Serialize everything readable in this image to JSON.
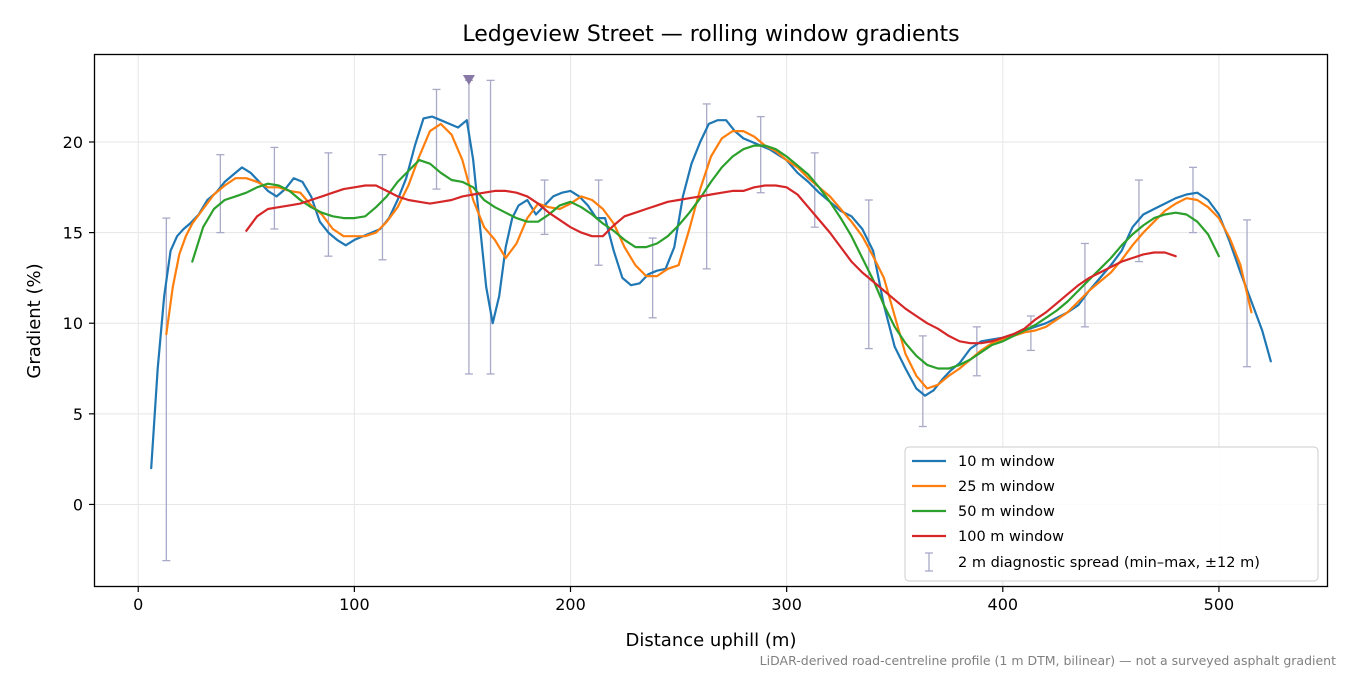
{
  "chart_data": {
    "type": "line",
    "title": "Ledgeview Street — rolling window gradients",
    "xlabel": "Distance uphill (m)",
    "ylabel": "Gradient (%)",
    "xlim": [
      -20,
      550
    ],
    "ylim": [
      -4.5,
      24.8
    ],
    "x_ticks": [
      0,
      100,
      200,
      300,
      400,
      500
    ],
    "y_ticks": [
      0,
      5,
      10,
      15,
      20
    ],
    "grid": true,
    "legend_position": "lower-right",
    "footnote": "LiDAR-derived road-centreline profile (1 m DTM, bilinear) — not a surveyed asphalt gradient",
    "series": [
      {
        "name": "10 m window",
        "color": "#1f77b4",
        "x": [
          6,
          9,
          12,
          15,
          18,
          21,
          24,
          28,
          32,
          36,
          40,
          44,
          48,
          52,
          56,
          60,
          64,
          68,
          72,
          76,
          80,
          84,
          88,
          92,
          96,
          100,
          104,
          108,
          112,
          116,
          120,
          124,
          128,
          132,
          136,
          140,
          144,
          148,
          152,
          155,
          158,
          161,
          164,
          167,
          170,
          173,
          176,
          180,
          184,
          188,
          192,
          196,
          200,
          204,
          208,
          212,
          216,
          220,
          224,
          228,
          232,
          236,
          240,
          244,
          248,
          252,
          256,
          260,
          264,
          268,
          272,
          276,
          280,
          284,
          288,
          292,
          296,
          300,
          305,
          310,
          315,
          320,
          325,
          330,
          335,
          340,
          345,
          350,
          355,
          360,
          364,
          368,
          372,
          376,
          380,
          385,
          390,
          395,
          400,
          405,
          410,
          415,
          420,
          425,
          430,
          435,
          440,
          445,
          450,
          455,
          460,
          465,
          470,
          475,
          480,
          485,
          490,
          495,
          500,
          505,
          510,
          515,
          520,
          524
        ],
        "y": [
          2.0,
          7.5,
          11.5,
          14.0,
          14.8,
          15.2,
          15.5,
          16.0,
          16.8,
          17.2,
          17.8,
          18.2,
          18.6,
          18.3,
          17.8,
          17.3,
          17.0,
          17.4,
          18.0,
          17.8,
          17.0,
          15.6,
          15.0,
          14.6,
          14.3,
          14.6,
          14.8,
          15.0,
          15.2,
          15.8,
          16.8,
          18.0,
          19.8,
          21.3,
          21.4,
          21.2,
          21.0,
          20.8,
          21.2,
          19.0,
          15.5,
          12.0,
          10.0,
          11.5,
          14.2,
          15.8,
          16.5,
          16.8,
          16.0,
          16.5,
          17.0,
          17.2,
          17.3,
          17.0,
          16.5,
          15.8,
          15.8,
          14.0,
          12.5,
          12.1,
          12.2,
          12.7,
          12.9,
          13.0,
          14.2,
          17.0,
          18.8,
          20.0,
          21.0,
          21.2,
          21.2,
          20.6,
          20.2,
          20.0,
          19.8,
          19.6,
          19.3,
          19.0,
          18.3,
          17.8,
          17.2,
          16.7,
          16.2,
          15.9,
          15.2,
          14.0,
          11.0,
          8.7,
          7.5,
          6.4,
          6.0,
          6.3,
          6.9,
          7.4,
          7.8,
          8.6,
          9.0,
          9.1,
          9.2,
          9.4,
          9.6,
          9.8,
          10.0,
          10.3,
          10.6,
          11.0,
          11.8,
          12.5,
          13.2,
          14.0,
          15.3,
          16.0,
          16.3,
          16.6,
          16.9,
          17.1,
          17.2,
          16.8,
          16.0,
          14.5,
          12.8,
          11.2,
          9.6,
          7.9
        ]
      },
      {
        "name": "25 m window",
        "color": "#ff7f0e",
        "x": [
          13,
          16,
          19,
          22,
          25,
          30,
          35,
          40,
          45,
          50,
          55,
          60,
          65,
          70,
          75,
          80,
          85,
          90,
          95,
          100,
          105,
          110,
          115,
          120,
          125,
          130,
          135,
          140,
          145,
          150,
          155,
          160,
          165,
          170,
          175,
          180,
          185,
          190,
          195,
          200,
          205,
          210,
          215,
          220,
          225,
          230,
          235,
          240,
          245,
          250,
          255,
          260,
          265,
          270,
          275,
          280,
          285,
          290,
          295,
          300,
          305,
          310,
          315,
          320,
          325,
          330,
          335,
          340,
          345,
          350,
          355,
          360,
          365,
          370,
          375,
          380,
          385,
          390,
          395,
          400,
          405,
          410,
          415,
          420,
          425,
          430,
          435,
          440,
          445,
          450,
          455,
          460,
          465,
          470,
          475,
          480,
          485,
          490,
          495,
          500,
          505,
          510,
          515
        ],
        "y": [
          9.4,
          12.0,
          13.8,
          14.8,
          15.5,
          16.3,
          17.1,
          17.6,
          18.0,
          18.0,
          17.8,
          17.5,
          17.5,
          17.3,
          17.2,
          16.5,
          16.0,
          15.2,
          14.8,
          14.8,
          14.8,
          15.0,
          15.6,
          16.4,
          17.6,
          19.2,
          20.6,
          21.0,
          20.4,
          19.0,
          16.8,
          15.3,
          14.6,
          13.6,
          14.4,
          15.8,
          16.6,
          16.4,
          16.3,
          16.6,
          17.0,
          16.8,
          16.3,
          15.5,
          14.2,
          13.2,
          12.6,
          12.6,
          13.0,
          13.2,
          15.2,
          17.4,
          19.2,
          20.2,
          20.6,
          20.6,
          20.3,
          19.8,
          19.5,
          19.0,
          18.6,
          18.0,
          17.5,
          17.0,
          16.3,
          15.6,
          14.8,
          13.7,
          12.5,
          10.4,
          8.3,
          7.1,
          6.4,
          6.6,
          7.1,
          7.5,
          8.0,
          8.5,
          8.9,
          9.1,
          9.3,
          9.5,
          9.6,
          9.8,
          10.2,
          10.6,
          11.2,
          11.8,
          12.3,
          12.8,
          13.5,
          14.3,
          15.0,
          15.6,
          16.2,
          16.6,
          16.9,
          16.8,
          16.4,
          15.8,
          14.7,
          13.2,
          10.6
        ]
      },
      {
        "name": "50 m window",
        "color": "#2ca02c",
        "x": [
          25,
          30,
          35,
          40,
          45,
          50,
          55,
          60,
          65,
          70,
          75,
          80,
          85,
          90,
          95,
          100,
          105,
          110,
          115,
          120,
          125,
          130,
          135,
          140,
          145,
          150,
          155,
          160,
          165,
          170,
          175,
          180,
          185,
          190,
          195,
          200,
          205,
          210,
          215,
          220,
          225,
          230,
          235,
          240,
          245,
          250,
          255,
          260,
          265,
          270,
          275,
          280,
          285,
          290,
          295,
          300,
          305,
          310,
          315,
          320,
          325,
          330,
          335,
          340,
          345,
          350,
          355,
          360,
          365,
          370,
          375,
          380,
          385,
          390,
          395,
          400,
          405,
          410,
          415,
          420,
          425,
          430,
          435,
          440,
          445,
          450,
          455,
          460,
          465,
          470,
          475,
          480,
          485,
          490,
          495,
          500
        ],
        "y": [
          13.4,
          15.3,
          16.3,
          16.8,
          17.0,
          17.2,
          17.5,
          17.7,
          17.6,
          17.3,
          16.8,
          16.4,
          16.1,
          15.9,
          15.8,
          15.8,
          15.9,
          16.4,
          17.0,
          17.8,
          18.4,
          19.0,
          18.8,
          18.3,
          17.9,
          17.8,
          17.5,
          16.8,
          16.4,
          16.1,
          15.8,
          15.6,
          15.6,
          16.0,
          16.5,
          16.7,
          16.4,
          16.0,
          15.5,
          15.1,
          14.6,
          14.2,
          14.2,
          14.4,
          14.8,
          15.4,
          16.1,
          16.9,
          17.8,
          18.6,
          19.2,
          19.6,
          19.8,
          19.8,
          19.6,
          19.2,
          18.7,
          18.2,
          17.5,
          16.7,
          15.8,
          14.8,
          13.6,
          12.4,
          11.0,
          9.8,
          8.9,
          8.2,
          7.7,
          7.5,
          7.5,
          7.7,
          8.0,
          8.4,
          8.8,
          9.0,
          9.3,
          9.6,
          9.9,
          10.3,
          10.7,
          11.2,
          11.8,
          12.4,
          13.0,
          13.6,
          14.3,
          14.9,
          15.4,
          15.8,
          16.0,
          16.1,
          16.0,
          15.6,
          14.9,
          13.7
        ]
      },
      {
        "name": "100 m window",
        "color": "#d62728",
        "x": [
          50,
          55,
          60,
          65,
          70,
          75,
          80,
          85,
          90,
          95,
          100,
          105,
          110,
          115,
          120,
          125,
          130,
          135,
          140,
          145,
          150,
          155,
          160,
          165,
          170,
          175,
          180,
          185,
          190,
          195,
          200,
          205,
          210,
          215,
          220,
          225,
          230,
          235,
          240,
          245,
          250,
          255,
          260,
          265,
          270,
          275,
          280,
          285,
          290,
          295,
          300,
          305,
          310,
          315,
          320,
          325,
          330,
          335,
          340,
          345,
          350,
          355,
          360,
          365,
          370,
          375,
          380,
          385,
          390,
          395,
          400,
          405,
          410,
          415,
          420,
          425,
          430,
          435,
          440,
          445,
          450,
          455,
          460,
          465,
          470,
          475,
          480
        ],
        "y": [
          15.1,
          15.9,
          16.3,
          16.4,
          16.5,
          16.6,
          16.8,
          17.0,
          17.2,
          17.4,
          17.5,
          17.6,
          17.6,
          17.3,
          17.0,
          16.8,
          16.7,
          16.6,
          16.7,
          16.8,
          17.0,
          17.1,
          17.2,
          17.3,
          17.3,
          17.2,
          17.0,
          16.6,
          16.1,
          15.7,
          15.3,
          15.0,
          14.8,
          14.8,
          15.4,
          15.9,
          16.1,
          16.3,
          16.5,
          16.7,
          16.8,
          16.9,
          17.0,
          17.1,
          17.2,
          17.3,
          17.3,
          17.5,
          17.6,
          17.6,
          17.5,
          17.1,
          16.4,
          15.7,
          15.0,
          14.2,
          13.4,
          12.8,
          12.3,
          11.8,
          11.3,
          10.8,
          10.4,
          10.0,
          9.7,
          9.3,
          9.0,
          8.9,
          8.9,
          9.0,
          9.2,
          9.4,
          9.7,
          10.2,
          10.6,
          11.1,
          11.6,
          12.1,
          12.5,
          12.8,
          13.1,
          13.4,
          13.6,
          13.8,
          13.9,
          13.9,
          13.7
        ]
      }
    ],
    "diagnostic_spread": {
      "name": "2 m diagnostic spread (min–max, ±12 m)",
      "color": "#a9a9c8",
      "points": [
        {
          "x": 13,
          "min": -3.1,
          "max": 15.8
        },
        {
          "x": 38,
          "min": 15.0,
          "max": 19.3
        },
        {
          "x": 63,
          "min": 15.2,
          "max": 19.7
        },
        {
          "x": 88,
          "min": 13.7,
          "max": 19.4
        },
        {
          "x": 113,
          "min": 13.5,
          "max": 19.3
        },
        {
          "x": 138,
          "min": 17.4,
          "max": 22.9
        },
        {
          "x": 153,
          "min": 7.2,
          "max": 23.4
        },
        {
          "x": 163,
          "min": 7.2,
          "max": 23.4
        },
        {
          "x": 188,
          "min": 14.9,
          "max": 17.9
        },
        {
          "x": 213,
          "min": 13.2,
          "max": 17.9
        },
        {
          "x": 238,
          "min": 10.3,
          "max": 14.7
        },
        {
          "x": 263,
          "min": 13.0,
          "max": 22.1
        },
        {
          "x": 288,
          "min": 17.2,
          "max": 21.4
        },
        {
          "x": 313,
          "min": 15.3,
          "max": 19.4
        },
        {
          "x": 338,
          "min": 8.6,
          "max": 16.8
        },
        {
          "x": 363,
          "min": 4.3,
          "max": 9.3
        },
        {
          "x": 388,
          "min": 7.1,
          "max": 9.8
        },
        {
          "x": 413,
          "min": 8.5,
          "max": 10.4
        },
        {
          "x": 438,
          "min": 9.8,
          "max": 14.4
        },
        {
          "x": 463,
          "min": 13.4,
          "max": 17.9
        },
        {
          "x": 488,
          "min": 15.0,
          "max": 18.6
        },
        {
          "x": 513,
          "min": 7.6,
          "max": 15.7
        }
      ],
      "marker_x": 153
    }
  }
}
